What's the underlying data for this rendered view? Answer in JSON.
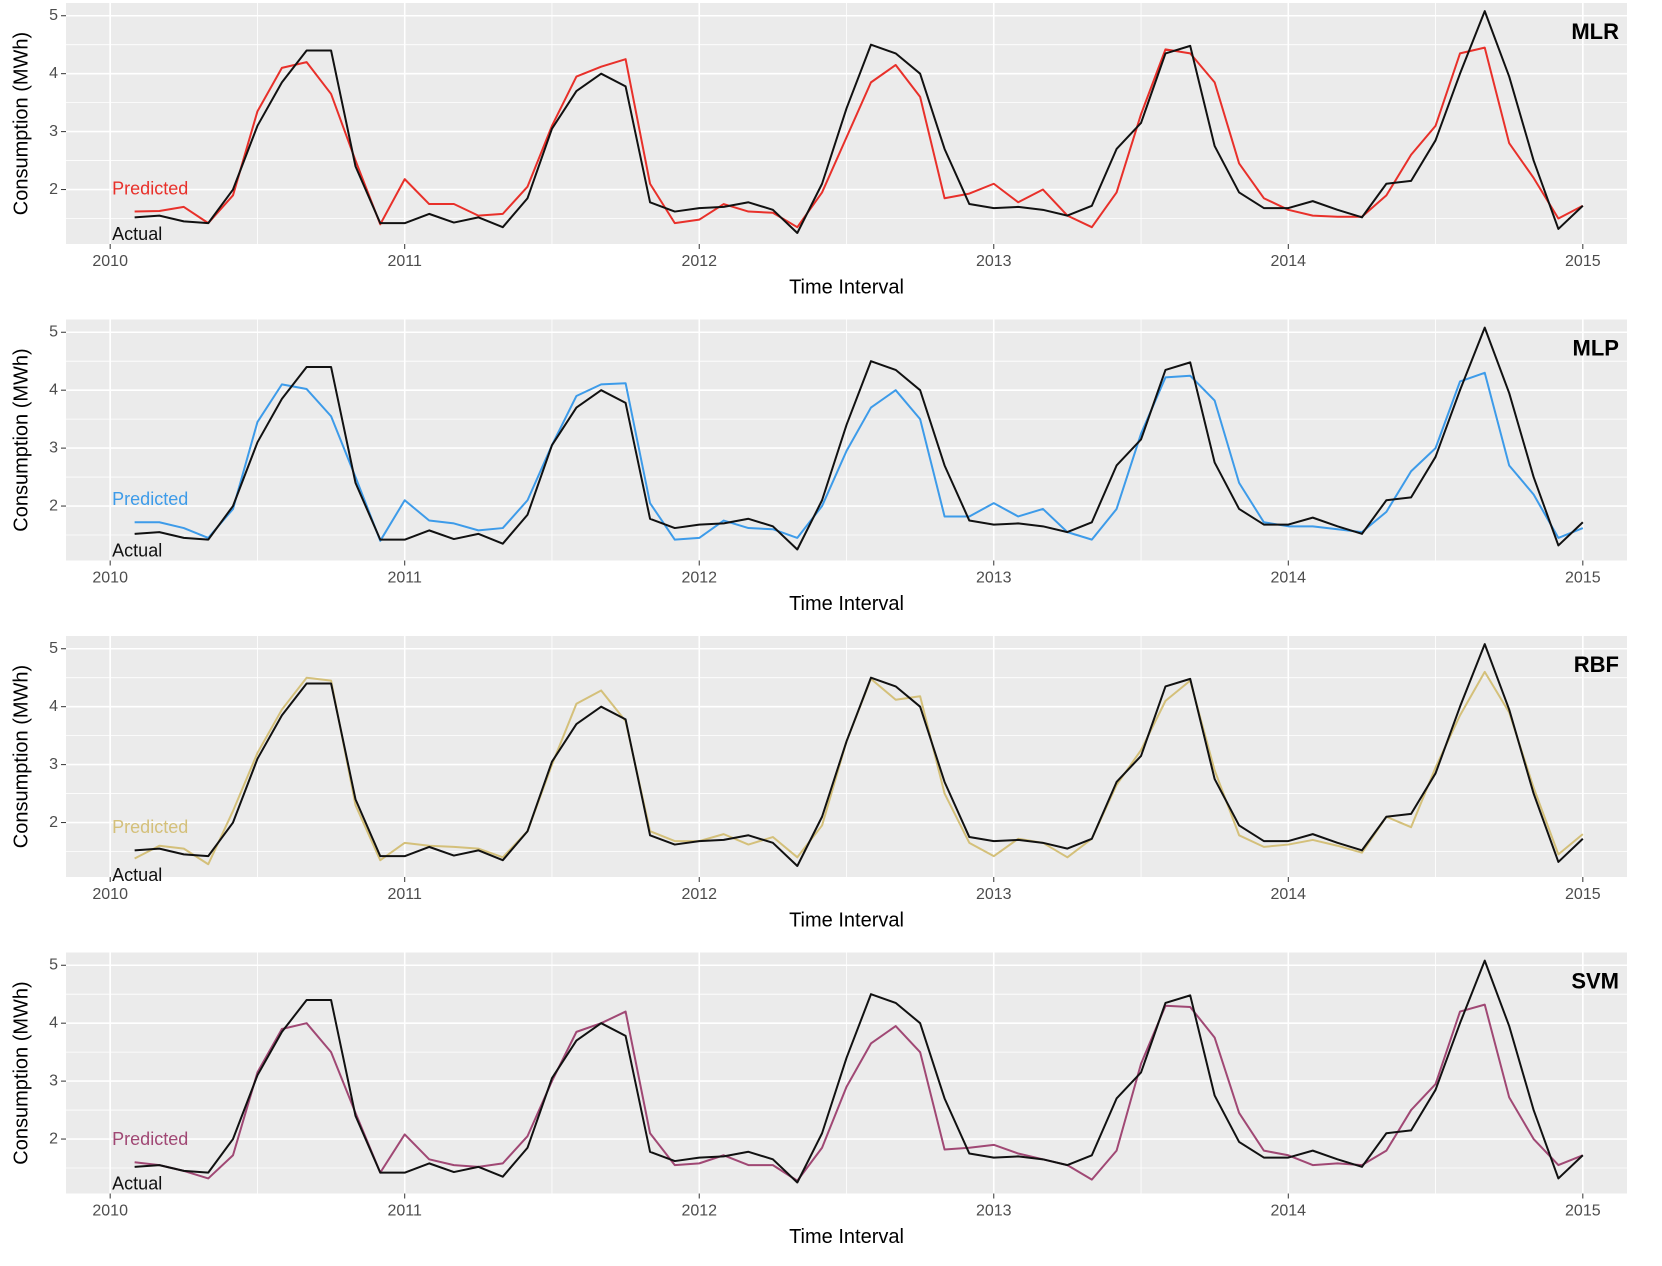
{
  "chart_data": [
    {
      "type": "line",
      "title": "MLR",
      "x_label": "Time Interval",
      "y_label": "Consumption (MWh)",
      "x": [
        2010.083,
        2010.167,
        2010.25,
        2010.333,
        2010.417,
        2010.5,
        2010.583,
        2010.667,
        2010.75,
        2010.833,
        2010.917,
        2011,
        2011.083,
        2011.167,
        2011.25,
        2011.333,
        2011.417,
        2011.5,
        2011.583,
        2011.667,
        2011.75,
        2011.833,
        2011.917,
        2012,
        2012.083,
        2012.167,
        2012.25,
        2012.333,
        2012.417,
        2012.5,
        2012.583,
        2012.667,
        2012.75,
        2012.833,
        2012.917,
        2013,
        2013.083,
        2013.167,
        2013.25,
        2013.333,
        2013.417,
        2013.5,
        2013.583,
        2013.667,
        2013.75,
        2013.833,
        2013.917,
        2014,
        2014.083,
        2014.167,
        2014.25,
        2014.333,
        2014.417,
        2014.5,
        2014.583,
        2014.667,
        2014.75,
        2014.833,
        2014.917,
        2015
      ],
      "series": [
        {
          "name": "Predicted",
          "color": "#e8302a",
          "values": [
            1.62,
            1.63,
            1.7,
            1.42,
            1.9,
            3.35,
            4.1,
            4.2,
            3.65,
            2.5,
            1.4,
            2.18,
            1.75,
            1.75,
            1.55,
            1.58,
            2.05,
            3.1,
            3.95,
            4.12,
            4.25,
            2.1,
            1.42,
            1.48,
            1.75,
            1.62,
            1.6,
            1.35,
            1.95,
            2.9,
            3.85,
            4.15,
            3.6,
            1.85,
            1.93,
            2.1,
            1.78,
            2.0,
            1.55,
            1.35,
            1.95,
            3.3,
            4.42,
            4.35,
            3.85,
            2.45,
            1.85,
            1.65,
            1.55,
            1.53,
            1.53,
            1.9,
            2.6,
            3.1,
            4.35,
            4.45,
            2.8,
            2.2,
            1.5,
            1.72
          ]
        },
        {
          "name": "Actual",
          "color": "#111111",
          "values": [
            1.52,
            1.55,
            1.45,
            1.42,
            2.0,
            3.1,
            3.85,
            4.4,
            4.4,
            2.4,
            1.42,
            1.42,
            1.58,
            1.43,
            1.52,
            1.35,
            1.85,
            3.05,
            3.7,
            4.0,
            3.78,
            1.78,
            1.62,
            1.68,
            1.7,
            1.78,
            1.65,
            1.25,
            2.1,
            3.4,
            4.5,
            4.35,
            4.0,
            2.7,
            1.75,
            1.68,
            1.7,
            1.65,
            1.55,
            1.72,
            2.7,
            3.15,
            4.35,
            4.48,
            2.75,
            1.95,
            1.68,
            1.68,
            1.8,
            1.65,
            1.52,
            2.1,
            2.15,
            2.85,
            4.0,
            5.08,
            3.95,
            2.5,
            1.32,
            1.72
          ]
        }
      ],
      "xlim": [
        2009.85,
        2015.15
      ],
      "ylim": [
        1.06,
        5.22
      ],
      "xticks": [
        2010,
        2011,
        2012,
        2013,
        2014,
        2015
      ],
      "yticks": [
        2,
        3,
        4,
        5
      ],
      "grid": true
    },
    {
      "type": "line",
      "title": "MLP",
      "x_label": "Time Interval",
      "y_label": "Consumption (MWh)",
      "x": [
        2010.083,
        2010.167,
        2010.25,
        2010.333,
        2010.417,
        2010.5,
        2010.583,
        2010.667,
        2010.75,
        2010.833,
        2010.917,
        2011,
        2011.083,
        2011.167,
        2011.25,
        2011.333,
        2011.417,
        2011.5,
        2011.583,
        2011.667,
        2011.75,
        2011.833,
        2011.917,
        2012,
        2012.083,
        2012.167,
        2012.25,
        2012.333,
        2012.417,
        2012.5,
        2012.583,
        2012.667,
        2012.75,
        2012.833,
        2012.917,
        2013,
        2013.083,
        2013.167,
        2013.25,
        2013.333,
        2013.417,
        2013.5,
        2013.583,
        2013.667,
        2013.75,
        2013.833,
        2013.917,
        2014,
        2014.083,
        2014.167,
        2014.25,
        2014.333,
        2014.417,
        2014.5,
        2014.583,
        2014.667,
        2014.75,
        2014.833,
        2014.917,
        2015
      ],
      "series": [
        {
          "name": "Predicted",
          "color": "#3d9be9",
          "values": [
            1.72,
            1.72,
            1.62,
            1.45,
            1.95,
            3.45,
            4.1,
            4.02,
            3.55,
            2.5,
            1.4,
            2.1,
            1.75,
            1.7,
            1.58,
            1.62,
            2.1,
            3.05,
            3.9,
            4.1,
            4.12,
            2.05,
            1.42,
            1.45,
            1.75,
            1.62,
            1.6,
            1.45,
            2.0,
            2.95,
            3.7,
            4.0,
            3.5,
            1.82,
            1.82,
            2.05,
            1.82,
            1.95,
            1.55,
            1.42,
            1.95,
            3.25,
            4.22,
            4.25,
            3.82,
            2.4,
            1.72,
            1.65,
            1.65,
            1.6,
            1.55,
            1.9,
            2.6,
            3.0,
            4.15,
            4.3,
            2.7,
            2.2,
            1.45,
            1.62
          ]
        },
        {
          "name": "Actual",
          "color": "#111111",
          "values": [
            1.52,
            1.55,
            1.45,
            1.42,
            2.0,
            3.1,
            3.85,
            4.4,
            4.4,
            2.4,
            1.42,
            1.42,
            1.58,
            1.43,
            1.52,
            1.35,
            1.85,
            3.05,
            3.7,
            4.0,
            3.78,
            1.78,
            1.62,
            1.68,
            1.7,
            1.78,
            1.65,
            1.25,
            2.1,
            3.4,
            4.5,
            4.35,
            4.0,
            2.7,
            1.75,
            1.68,
            1.7,
            1.65,
            1.55,
            1.72,
            2.7,
            3.15,
            4.35,
            4.48,
            2.75,
            1.95,
            1.68,
            1.68,
            1.8,
            1.65,
            1.52,
            2.1,
            2.15,
            2.85,
            4.0,
            5.08,
            3.95,
            2.5,
            1.32,
            1.72
          ]
        }
      ],
      "xlim": [
        2009.85,
        2015.15
      ],
      "ylim": [
        1.06,
        5.22
      ],
      "xticks": [
        2010,
        2011,
        2012,
        2013,
        2014,
        2015
      ],
      "yticks": [
        2,
        3,
        4,
        5
      ],
      "grid": true
    },
    {
      "type": "line",
      "title": "RBF",
      "x_label": "Time Interval",
      "y_label": "Consumption (MWh)",
      "x": [
        2010.083,
        2010.167,
        2010.25,
        2010.333,
        2010.417,
        2010.5,
        2010.583,
        2010.667,
        2010.75,
        2010.833,
        2010.917,
        2011,
        2011.083,
        2011.167,
        2011.25,
        2011.333,
        2011.417,
        2011.5,
        2011.583,
        2011.667,
        2011.75,
        2011.833,
        2011.917,
        2012,
        2012.083,
        2012.167,
        2012.25,
        2012.333,
        2012.417,
        2012.5,
        2012.583,
        2012.667,
        2012.75,
        2012.833,
        2012.917,
        2013,
        2013.083,
        2013.167,
        2013.25,
        2013.333,
        2013.417,
        2013.5,
        2013.583,
        2013.667,
        2013.75,
        2013.833,
        2013.917,
        2014,
        2014.083,
        2014.167,
        2014.25,
        2014.333,
        2014.417,
        2014.5,
        2014.583,
        2014.667,
        2014.75,
        2014.833,
        2014.917,
        2015
      ],
      "series": [
        {
          "name": "Predicted",
          "color": "#d4c07a",
          "values": [
            1.38,
            1.6,
            1.55,
            1.28,
            2.2,
            3.2,
            3.95,
            4.5,
            4.45,
            2.3,
            1.35,
            1.65,
            1.6,
            1.58,
            1.55,
            1.4,
            1.85,
            3.0,
            4.05,
            4.28,
            3.75,
            1.85,
            1.68,
            1.68,
            1.8,
            1.62,
            1.75,
            1.4,
            1.95,
            3.4,
            4.48,
            4.12,
            4.18,
            2.5,
            1.65,
            1.42,
            1.72,
            1.65,
            1.4,
            1.72,
            2.65,
            3.25,
            4.1,
            4.45,
            2.9,
            1.78,
            1.58,
            1.62,
            1.7,
            1.6,
            1.48,
            2.1,
            1.92,
            2.95,
            3.85,
            4.6,
            3.9,
            2.6,
            1.45,
            1.8
          ]
        },
        {
          "name": "Actual",
          "color": "#111111",
          "values": [
            1.52,
            1.55,
            1.45,
            1.42,
            2.0,
            3.1,
            3.85,
            4.4,
            4.4,
            2.4,
            1.42,
            1.42,
            1.58,
            1.43,
            1.52,
            1.35,
            1.85,
            3.05,
            3.7,
            4.0,
            3.78,
            1.78,
            1.62,
            1.68,
            1.7,
            1.78,
            1.65,
            1.25,
            2.1,
            3.4,
            4.5,
            4.35,
            4.0,
            2.7,
            1.75,
            1.68,
            1.7,
            1.65,
            1.55,
            1.72,
            2.7,
            3.15,
            4.35,
            4.48,
            2.75,
            1.95,
            1.68,
            1.68,
            1.8,
            1.65,
            1.52,
            2.1,
            2.15,
            2.85,
            4.0,
            5.08,
            3.95,
            2.5,
            1.32,
            1.72
          ]
        }
      ],
      "xlim": [
        2009.85,
        2015.15
      ],
      "ylim": [
        1.06,
        5.22
      ],
      "xticks": [
        2010,
        2011,
        2012,
        2013,
        2014,
        2015
      ],
      "yticks": [
        2,
        3,
        4,
        5
      ],
      "grid": true
    },
    {
      "type": "line",
      "title": "SVM",
      "x_label": "Time Interval",
      "y_label": "Consumption (MWh)",
      "x": [
        2010.083,
        2010.167,
        2010.25,
        2010.333,
        2010.417,
        2010.5,
        2010.583,
        2010.667,
        2010.75,
        2010.833,
        2010.917,
        2011,
        2011.083,
        2011.167,
        2011.25,
        2011.333,
        2011.417,
        2011.5,
        2011.583,
        2011.667,
        2011.75,
        2011.833,
        2011.917,
        2012,
        2012.083,
        2012.167,
        2012.25,
        2012.333,
        2012.417,
        2012.5,
        2012.583,
        2012.667,
        2012.75,
        2012.833,
        2012.917,
        2013,
        2013.083,
        2013.167,
        2013.25,
        2013.333,
        2013.417,
        2013.5,
        2013.583,
        2013.667,
        2013.75,
        2013.833,
        2013.917,
        2014,
        2014.083,
        2014.167,
        2014.25,
        2014.333,
        2014.417,
        2014.5,
        2014.583,
        2014.667,
        2014.75,
        2014.833,
        2014.917,
        2015
      ],
      "series": [
        {
          "name": "Predicted",
          "color": "#a04874",
          "values": [
            1.6,
            1.55,
            1.45,
            1.32,
            1.72,
            3.15,
            3.9,
            4.0,
            3.5,
            2.45,
            1.42,
            2.08,
            1.65,
            1.55,
            1.52,
            1.58,
            2.05,
            3.0,
            3.85,
            4.0,
            4.2,
            2.1,
            1.55,
            1.58,
            1.72,
            1.55,
            1.55,
            1.28,
            1.85,
            2.9,
            3.65,
            3.95,
            3.5,
            1.82,
            1.85,
            1.9,
            1.75,
            1.65,
            1.55,
            1.3,
            1.8,
            3.3,
            4.3,
            4.28,
            3.75,
            2.45,
            1.8,
            1.72,
            1.55,
            1.58,
            1.55,
            1.8,
            2.5,
            2.95,
            4.2,
            4.32,
            2.72,
            2.0,
            1.55,
            1.72
          ]
        },
        {
          "name": "Actual",
          "color": "#111111",
          "values": [
            1.52,
            1.55,
            1.45,
            1.42,
            2.0,
            3.1,
            3.85,
            4.4,
            4.4,
            2.4,
            1.42,
            1.42,
            1.58,
            1.43,
            1.52,
            1.35,
            1.85,
            3.05,
            3.7,
            4.0,
            3.78,
            1.78,
            1.62,
            1.68,
            1.7,
            1.78,
            1.65,
            1.25,
            2.1,
            3.4,
            4.5,
            4.35,
            4.0,
            2.7,
            1.75,
            1.68,
            1.7,
            1.65,
            1.55,
            1.72,
            2.7,
            3.15,
            4.35,
            4.48,
            2.75,
            1.95,
            1.68,
            1.68,
            1.8,
            1.65,
            1.52,
            2.1,
            2.15,
            2.85,
            4.0,
            5.08,
            3.95,
            2.5,
            1.32,
            1.72
          ]
        }
      ],
      "xlim": [
        2009.85,
        2015.15
      ],
      "ylim": [
        1.06,
        5.22
      ],
      "xticks": [
        2010,
        2011,
        2012,
        2013,
        2014,
        2015
      ],
      "yticks": [
        2,
        3,
        4,
        5
      ],
      "grid": true
    }
  ]
}
